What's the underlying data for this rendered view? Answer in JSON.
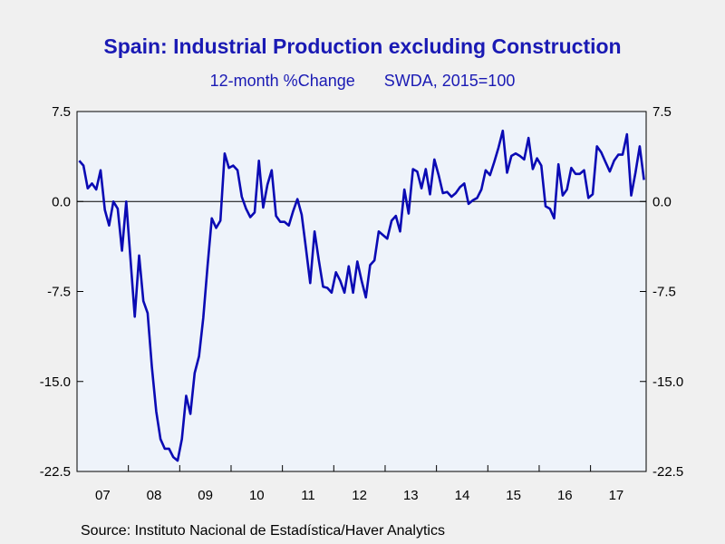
{
  "colors": {
    "series": "#0a0ab4",
    "title": "#1a1ab4",
    "plot_bg": "#eef3fa",
    "background": "#f0f0f0"
  },
  "chart_data": {
    "type": "line",
    "title": "Spain: Industrial Production excluding Construction",
    "subtitle_left": "12-month %Change",
    "subtitle_right": "SWDA, 2015=100",
    "source": "Source:  Instituto Nacional de Estadística/Haver Analytics",
    "x_start": "2007-01",
    "x_end": "2017-11",
    "x_ticks": [
      "07",
      "08",
      "09",
      "10",
      "11",
      "12",
      "13",
      "14",
      "15",
      "16",
      "17"
    ],
    "y_ticks": [
      "7.5",
      "0.0",
      "-7.5",
      "-15.0",
      "-22.5"
    ],
    "ylim": [
      -22.5,
      7.5
    ],
    "zero_line": true,
    "grid": false,
    "values": [
      3.4,
      3.0,
      1.1,
      1.5,
      1.0,
      2.6,
      -0.7,
      -2.0,
      0.0,
      -0.6,
      -4.1,
      0.0,
      -4.8,
      -9.6,
      -4.5,
      -8.3,
      -9.3,
      -13.8,
      -17.5,
      -19.8,
      -20.6,
      -20.6,
      -21.3,
      -21.6,
      -19.8,
      -16.2,
      -17.7,
      -14.3,
      -12.9,
      -9.7,
      -5.4,
      -1.4,
      -2.2,
      -1.6,
      4.0,
      2.8,
      3.0,
      2.6,
      0.4,
      -0.6,
      -1.3,
      -0.9,
      3.4,
      -0.5,
      1.4,
      2.6,
      -1.2,
      -1.7,
      -1.7,
      -2.0,
      -0.8,
      0.2,
      -1.1,
      -3.9,
      -6.8,
      -2.5,
      -4.9,
      -7.1,
      -7.2,
      -7.6,
      -5.9,
      -6.6,
      -7.6,
      -5.4,
      -7.6,
      -5.0,
      -6.6,
      -8.0,
      -5.3,
      -4.9,
      -2.5,
      -2.8,
      -3.1,
      -1.6,
      -1.2,
      -2.5,
      1.0,
      -1.0,
      2.7,
      2.5,
      1.1,
      2.7,
      0.6,
      3.5,
      2.2,
      0.7,
      0.8,
      0.4,
      0.7,
      1.2,
      1.5,
      -0.2,
      0.1,
      0.3,
      1.0,
      2.6,
      2.2,
      3.3,
      4.5,
      5.9,
      2.4,
      3.8,
      4.0,
      3.8,
      3.5,
      5.3,
      2.7,
      3.6,
      3.0,
      -0.4,
      -0.6,
      -1.4,
      3.1,
      0.5,
      1.0,
      2.8,
      2.3,
      2.3,
      2.6,
      0.3,
      0.6,
      4.6,
      4.1,
      3.3,
      2.5,
      3.4,
      3.9,
      3.9,
      5.6,
      0.5,
      2.4,
      4.6,
      1.8
    ]
  }
}
